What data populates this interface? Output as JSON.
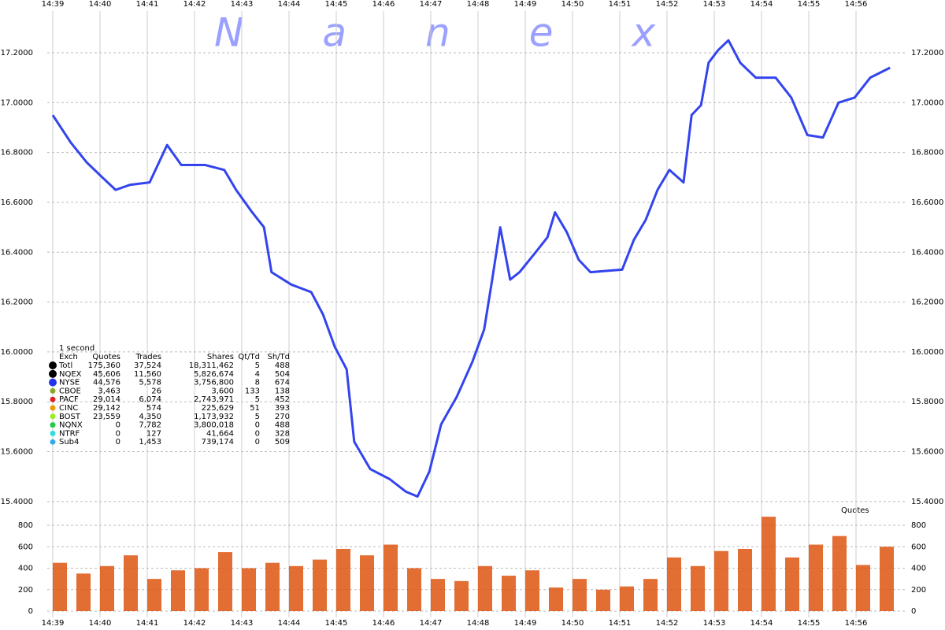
{
  "chart_data": [
    {
      "type": "line",
      "title": "Nanex",
      "x": [
        0,
        0.38,
        0.72,
        1.05,
        1.33,
        1.63,
        2.05,
        2.42,
        2.72,
        3.22,
        3.63,
        3.88,
        4.22,
        4.47,
        4.63,
        5.05,
        5.47,
        5.72,
        5.97,
        6.22,
        6.38,
        6.72,
        7.13,
        7.47,
        7.72,
        7.97,
        8.22,
        8.55,
        8.88,
        9.13,
        9.3,
        9.47,
        9.68,
        9.88,
        10.22,
        10.47,
        10.63,
        10.88,
        11.13,
        11.38,
        12.05,
        12.3,
        12.55,
        12.8,
        13.05,
        13.35,
        13.52,
        13.72,
        13.88,
        14.08,
        14.3,
        14.55,
        14.88,
        15.3,
        15.63,
        15.97,
        16.3,
        16.63,
        16.97,
        17.3,
        17.72
      ],
      "series": [
        {
          "color": "#3344ee",
          "values": [
            16.95,
            16.84,
            16.76,
            16.7,
            16.65,
            16.67,
            16.68,
            16.83,
            16.75,
            16.75,
            16.73,
            16.65,
            16.56,
            16.5,
            16.32,
            16.27,
            16.24,
            16.15,
            16.02,
            15.93,
            15.64,
            15.53,
            15.49,
            15.44,
            15.42,
            15.52,
            15.71,
            15.82,
            15.96,
            16.09,
            16.29,
            16.5,
            16.29,
            16.32,
            16.4,
            16.46,
            16.56,
            16.48,
            16.37,
            16.32,
            16.33,
            16.45,
            16.53,
            16.65,
            16.73,
            16.68,
            16.95,
            16.99,
            17.16,
            17.21,
            17.25,
            17.16,
            17.1,
            17.1,
            17.02,
            16.87,
            16.86,
            17.0,
            17.02,
            17.1,
            17.14
          ]
        }
      ],
      "xlim": [
        0,
        18.2
      ],
      "xticks": [
        {
          "value": 0,
          "label": "14:39"
        },
        {
          "value": 1,
          "label": "14:40"
        },
        {
          "value": 2,
          "label": "14:41"
        },
        {
          "value": 3,
          "label": "14:42"
        },
        {
          "value": 4,
          "label": "14:43"
        },
        {
          "value": 5,
          "label": "14:44"
        },
        {
          "value": 6,
          "label": "14:45"
        },
        {
          "value": 7,
          "label": "14:46"
        },
        {
          "value": 8,
          "label": "14:47"
        },
        {
          "value": 9,
          "label": "14:48"
        },
        {
          "value": 10,
          "label": "14:49"
        },
        {
          "value": 11,
          "label": "14:50"
        },
        {
          "value": 12,
          "label": "14:51"
        },
        {
          "value": 13,
          "label": "14:52"
        },
        {
          "value": 14,
          "label": "14:53"
        },
        {
          "value": 15,
          "label": "14:54"
        },
        {
          "value": 16,
          "label": "14:55"
        },
        {
          "value": 17,
          "label": "14:56"
        }
      ],
      "ylim": [
        15.35,
        17.35
      ],
      "yticks": [
        {
          "value": 15.4,
          "label": "15.4000"
        },
        {
          "value": 15.6,
          "label": "15.6000"
        },
        {
          "value": 15.8,
          "label": "15.8000"
        },
        {
          "value": 16.0,
          "label": "16.0000"
        },
        {
          "value": 16.2,
          "label": "16.2000"
        },
        {
          "value": 16.4,
          "label": "16.4000"
        },
        {
          "value": 16.6,
          "label": "16.6000"
        },
        {
          "value": 16.8,
          "label": "16.8000"
        },
        {
          "value": 17.0,
          "label": "17.0000"
        },
        {
          "value": 17.2,
          "label": "17.2000"
        }
      ],
      "grid": true,
      "table": {
        "title": "1 second",
        "columns": [
          "Exch",
          "Quotes",
          "Trades",
          "Shares",
          "Qt/Td",
          "Sh/Td"
        ],
        "rows": [
          {
            "color": "#000000",
            "cells": [
              "Totl",
              "175,360",
              "37,524",
              "18,311,462",
              "5",
              "488"
            ]
          },
          {
            "color": "#000000",
            "cells": [
              "NQEX",
              "45,606",
              "11,560",
              "5,826,674",
              "4",
              "504"
            ]
          },
          {
            "color": "#2233ee",
            "cells": [
              "NYSE",
              "44,576",
              "5,578",
              "3,756,800",
              "8",
              "674"
            ]
          },
          {
            "color": "#88aa22",
            "cells": [
              "CBOE",
              "3,463",
              "26",
              "3,600",
              "133",
              "138"
            ]
          },
          {
            "color": "#dd2222",
            "cells": [
              "PACF",
              "29,014",
              "6,074",
              "2,743,971",
              "5",
              "452"
            ]
          },
          {
            "color": "#ee9900",
            "cells": [
              "CINC",
              "29,142",
              "574",
              "225,629",
              "51",
              "393"
            ]
          },
          {
            "color": "#99ee22",
            "cells": [
              "BOST",
              "23,559",
              "4,350",
              "1,173,932",
              "5",
              "270"
            ]
          },
          {
            "color": "#22cc44",
            "cells": [
              "NQNX",
              "0",
              "7,782",
              "3,800,018",
              "0",
              "488"
            ]
          },
          {
            "color": "#33dddd",
            "cells": [
              "NTRF",
              "0",
              "127",
              "41,664",
              "0",
              "328"
            ]
          },
          {
            "color": "#33aaee",
            "cells": [
              "Sub4",
              "0",
              "1,453",
              "739,174",
              "0",
              "509"
            ]
          }
        ]
      }
    },
    {
      "type": "bar",
      "title": "Quotes",
      "x": [
        0,
        0.5,
        1,
        1.5,
        2,
        2.5,
        3,
        3.5,
        4,
        4.5,
        5,
        5.5,
        6,
        6.5,
        7,
        7.5,
        8,
        8.5,
        9,
        9.5,
        10,
        10.5,
        11,
        11.5,
        12,
        12.5,
        13,
        13.5,
        14,
        14.5,
        15,
        15.5,
        16,
        16.5,
        17,
        17.5
      ],
      "values": [
        450,
        350,
        420,
        520,
        300,
        380,
        400,
        550,
        400,
        450,
        420,
        480,
        580,
        520,
        620,
        400,
        300,
        280,
        420,
        330,
        380,
        220,
        300,
        200,
        230,
        300,
        500,
        420,
        560,
        580,
        880,
        500,
        620,
        700,
        430,
        600
      ],
      "color": "#dd5511",
      "xlim": [
        0,
        18.2
      ],
      "xticks": [
        {
          "value": 0,
          "label": "14:39"
        },
        {
          "value": 1,
          "label": "14:40"
        },
        {
          "value": 2,
          "label": "14:41"
        },
        {
          "value": 3,
          "label": "14:42"
        },
        {
          "value": 4,
          "label": "14:43"
        },
        {
          "value": 5,
          "label": "14:44"
        },
        {
          "value": 6,
          "label": "14:45"
        },
        {
          "value": 7,
          "label": "14:46"
        },
        {
          "value": 8,
          "label": "14:47"
        },
        {
          "value": 9,
          "label": "14:48"
        },
        {
          "value": 10,
          "label": "14:49"
        },
        {
          "value": 11,
          "label": "14:50"
        },
        {
          "value": 12,
          "label": "14:51"
        },
        {
          "value": 13,
          "label": "14:52"
        },
        {
          "value": 14,
          "label": "14:53"
        },
        {
          "value": 15,
          "label": "14:54"
        },
        {
          "value": 16,
          "label": "14:55"
        },
        {
          "value": 17,
          "label": "14:56"
        }
      ],
      "ylim": [
        0,
        900
      ],
      "yticks": [
        0,
        200,
        400,
        600,
        800
      ],
      "grid": true
    }
  ]
}
